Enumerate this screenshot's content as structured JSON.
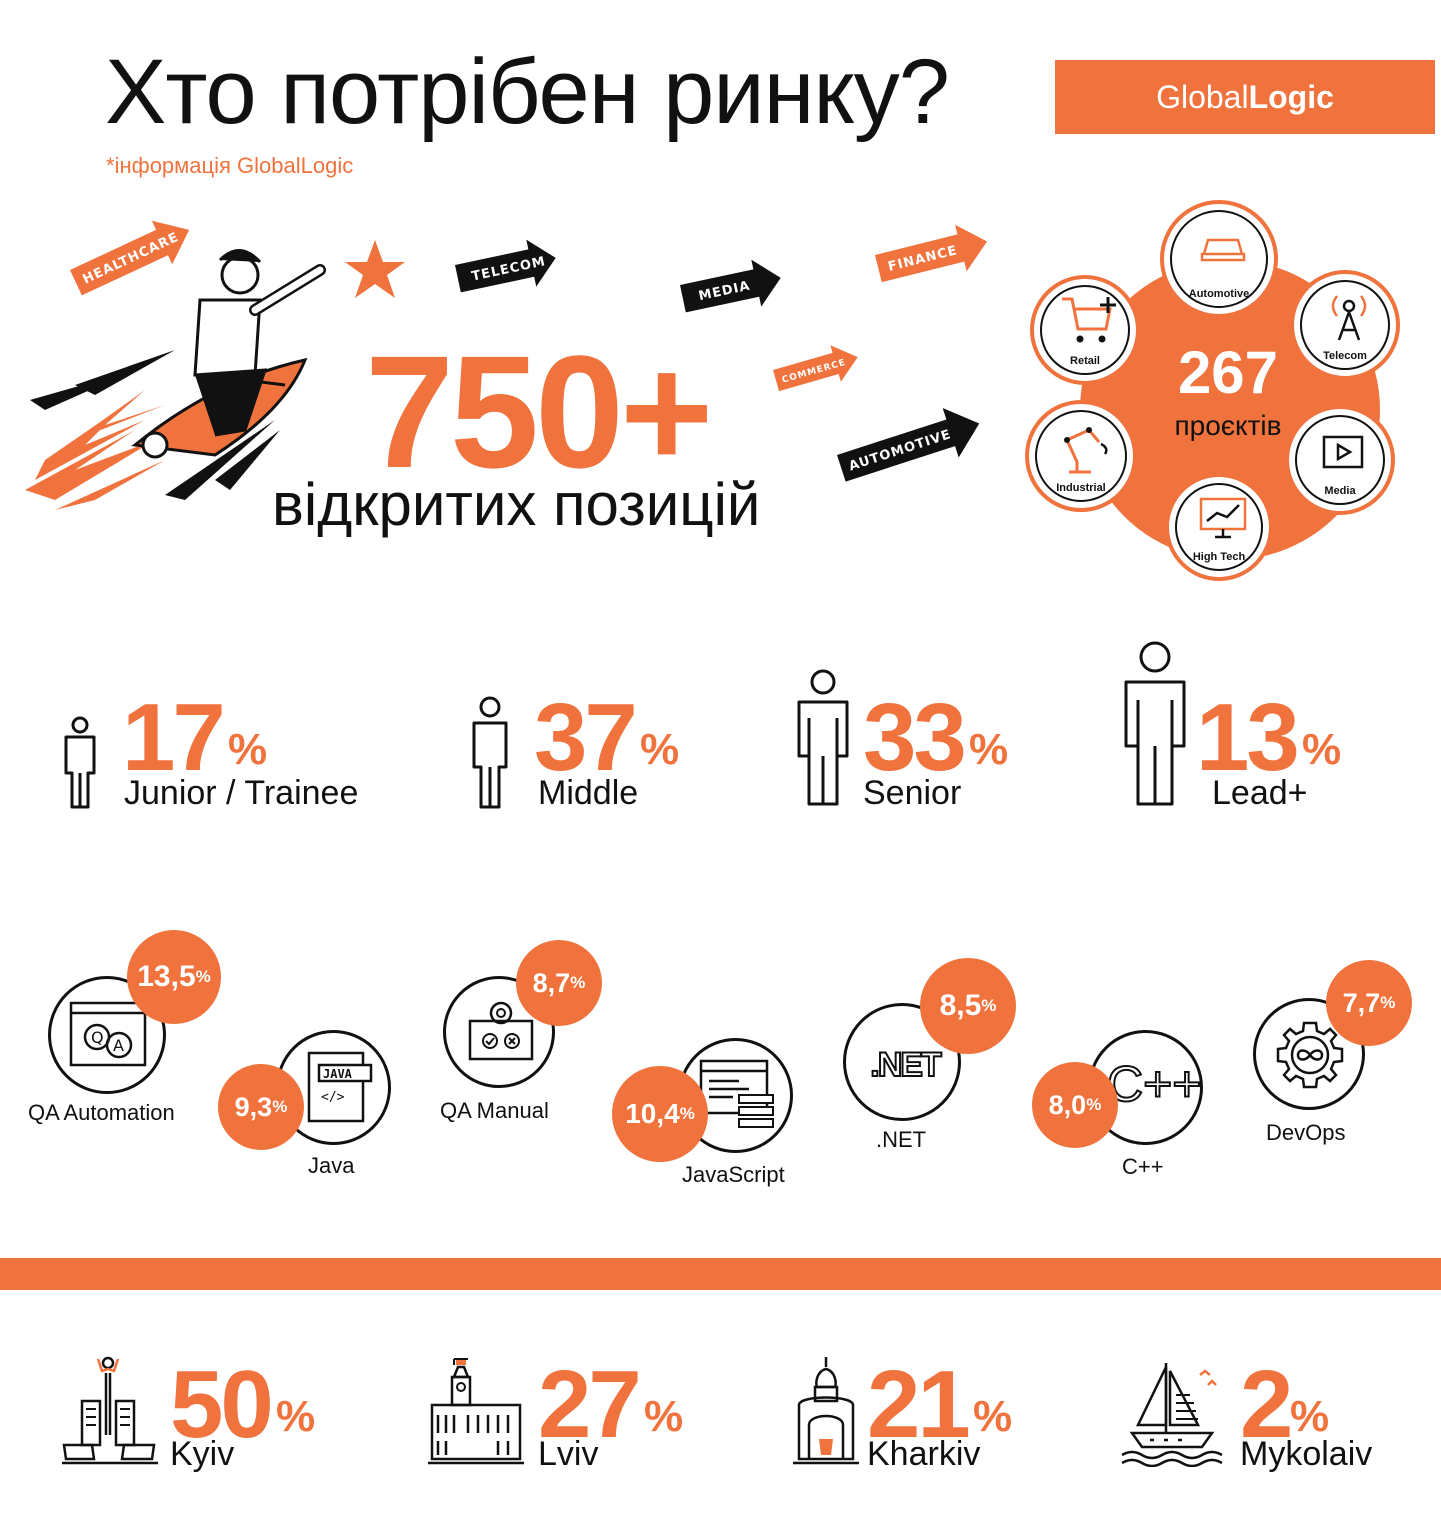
{
  "header": {
    "title": "Хто потрібен ринку?",
    "source_note": "*інформація GlobalLogic",
    "brand_regular": "Global",
    "brand_bold": "Logic"
  },
  "hero": {
    "open_positions": "750+",
    "open_positions_label": "відкритих позицій",
    "arrow_tags": [
      "HEALTHCARE",
      "TELECOM",
      "MEDIA",
      "FINANCE",
      "COMMERCE",
      "AUTOMOTIVE"
    ]
  },
  "projects": {
    "count": "267",
    "label": "проєктів",
    "sectors": [
      "Automotive",
      "Telecom",
      "Media",
      "High Tech",
      "Industrial",
      "Retail"
    ]
  },
  "levels": [
    {
      "value": "17",
      "unit": "%",
      "label": "Junior / Trainee"
    },
    {
      "value": "37",
      "unit": "%",
      "label": "Middle"
    },
    {
      "value": "33",
      "unit": "%",
      "label": "Senior"
    },
    {
      "value": "13",
      "unit": "%",
      "label": "Lead+"
    }
  ],
  "technologies": [
    {
      "name": "QA Automation",
      "value": "13,5",
      "unit": "%",
      "icon": "qa-icon"
    },
    {
      "name": "Java",
      "value": "9,3",
      "unit": "%",
      "icon": "java-icon"
    },
    {
      "name": "QA Manual",
      "value": "8,7",
      "unit": "%",
      "icon": "gear-check-icon"
    },
    {
      "name": "JavaScript",
      "value": "10,4",
      "unit": "%",
      "icon": "code-window-icon"
    },
    {
      "name": ".NET",
      "value": "8,5",
      "unit": "%",
      "icon": "dotnet-icon",
      "icon_text": ".NET"
    },
    {
      "name": "C++",
      "value": "8,0",
      "unit": "%",
      "icon": "cpp-icon",
      "icon_text": "C++"
    },
    {
      "name": "DevOps",
      "value": "7,7",
      "unit": "%",
      "icon": "infinity-gear-icon"
    }
  ],
  "cities": [
    {
      "value": "50",
      "unit": "%",
      "label": "Kyiv"
    },
    {
      "value": "27",
      "unit": "%",
      "label": "Lviv"
    },
    {
      "value": "21",
      "unit": "%",
      "label": "Kharkiv"
    },
    {
      "value": "2",
      "unit": "%",
      "label": "Mykolaiv"
    }
  ],
  "colors": {
    "accent": "#f0733d",
    "ink": "#111111",
    "background": "#ffffff"
  }
}
